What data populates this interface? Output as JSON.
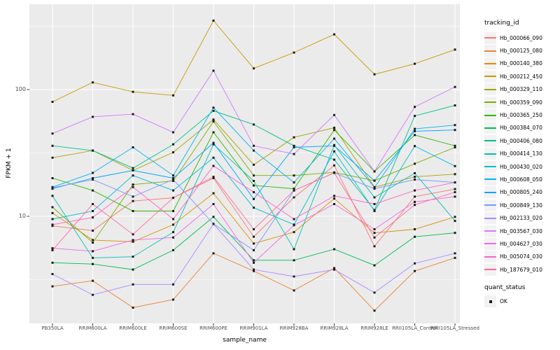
{
  "chart_data": {
    "type": "line",
    "title": "",
    "xlabel": "sample_name",
    "ylabel": "FPKM + 1",
    "y_scale": "log10",
    "ylim": [
      1.4,
      440
    ],
    "grid": "on",
    "legend_position": "right",
    "legend_title": "tracking_id",
    "quant_legend": {
      "title": "quant_status",
      "items": [
        {
          "label": "OK"
        }
      ]
    },
    "marker": {
      "shape": "square",
      "color": "#1a1a1a"
    },
    "panel_color": "#EBEBEB",
    "grid_color": "#FFFFFF",
    "y_ticks": {
      "labels": [
        "100",
        "10"
      ],
      "values": [
        100,
        10
      ],
      "minor_values": [
        316.23,
        31.623,
        3.1623
      ]
    },
    "categories": [
      "PB350LA",
      "RRIM600LA",
      "RRIM600LE",
      "RRIM600SE",
      "RRIM600PE",
      "RRIM901LA",
      "RRIM928BA",
      "RRIM928LA",
      "RRIM928LE",
      "RRII105LA_Control",
      "RRII105LA_Stressed"
    ],
    "series": [
      {
        "name": "Hb_000066_090",
        "color": "#F8766D",
        "values": [
          8.4,
          7.7,
          13.2,
          14,
          20,
          6.9,
          14.1,
          25.2,
          5.8,
          14.3,
          16.4
        ]
      },
      {
        "name": "Hb_000125_080",
        "color": "#EB8335",
        "values": [
          2.8,
          3.1,
          1.9,
          2.2,
          5.1,
          3.7,
          2.6,
          3.9,
          1.8,
          3.7,
          4.7
        ]
      },
      {
        "name": "Hb_000140_380",
        "color": "#DB8E00",
        "values": [
          10.6,
          6.5,
          6.3,
          8.6,
          15.2,
          6.1,
          7.5,
          13.8,
          7.4,
          7.9,
          9.9
        ]
      },
      {
        "name": "Hb_000212_450",
        "color": "#C49A00",
        "values": [
          80,
          114,
          96,
          90,
          350,
          147,
          196,
          273,
          132,
          160,
          207
        ]
      },
      {
        "name": "Hb_000329_110",
        "color": "#A6A400",
        "values": [
          29,
          33,
          23,
          32,
          58,
          25.5,
          42,
          50,
          17,
          20.5,
          21.5
        ]
      },
      {
        "name": "Hb_000359_090",
        "color": "#7CAE00",
        "values": [
          11.8,
          6.2,
          17.8,
          19,
          56,
          21,
          21,
          22.2,
          19.1,
          26,
          35
        ]
      },
      {
        "name": "Hb_000365_250",
        "color": "#30B700",
        "values": [
          20,
          16,
          11,
          11,
          46,
          17.5,
          16.5,
          48,
          22.6,
          43.8,
          36
        ]
      },
      {
        "name": "Hb_000384_070",
        "color": "#00BC51",
        "values": [
          4.3,
          4.2,
          3.8,
          5.4,
          9.9,
          4.5,
          4.5,
          5.5,
          4.1,
          6.9,
          7.4
        ]
      },
      {
        "name": "Hb_000406_080",
        "color": "#00C087",
        "values": [
          36,
          33,
          24,
          37,
          68,
          53,
          36,
          28,
          11.2,
          62,
          75
        ]
      },
      {
        "name": "Hb_000414_130",
        "color": "#00C0B2",
        "values": [
          14.5,
          4.7,
          4.8,
          7.5,
          37,
          19,
          5.5,
          36.5,
          14.1,
          21.9,
          9.2
        ]
      },
      {
        "name": "Hb_000430_020",
        "color": "#00BDD4",
        "values": [
          9.5,
          11,
          21,
          16,
          29,
          11.7,
          8.6,
          32.5,
          11,
          35.8,
          24.9
        ]
      },
      {
        "name": "Hb_000608_050",
        "color": "#00B4EF",
        "values": [
          17,
          22,
          35,
          21,
          72,
          33,
          18.5,
          41,
          16.9,
          49,
          52.5
        ]
      },
      {
        "name": "Hb_000805_240",
        "color": "#00A5FF",
        "values": [
          16.5,
          20,
          23,
          20,
          38,
          13.7,
          35,
          36,
          19.1,
          47,
          48
        ]
      },
      {
        "name": "Hb_000849_130",
        "color": "#7997FF",
        "values": [
          16.8,
          19.5,
          14.3,
          19.5,
          8.7,
          5.4,
          16,
          22,
          16.5,
          19.5,
          18.5
        ]
      },
      {
        "name": "Hb_002133_020",
        "color": "#AC88FF",
        "values": [
          3.5,
          2.4,
          2.9,
          2.9,
          8.7,
          3.8,
          3.35,
          3.8,
          2.5,
          4.25,
          5.1
        ]
      },
      {
        "name": "Hb_003567_030",
        "color": "#D277FF",
        "values": [
          45,
          61,
          64,
          46,
          141,
          36,
          31,
          63,
          22.6,
          73,
          105
        ]
      },
      {
        "name": "Hb_004627_030",
        "color": "#F066EA",
        "values": [
          5.6,
          5.3,
          6.5,
          6.8,
          12.5,
          4.3,
          8.5,
          12.5,
          7.9,
          13,
          14.3
        ]
      },
      {
        "name": "Hb_005074_030",
        "color": "#FF61C7",
        "values": [
          8.6,
          9.8,
          17,
          9.5,
          25,
          15.5,
          9.5,
          14.5,
          12.5,
          16,
          18.5
        ]
      },
      {
        "name": "Hb_187679_010",
        "color": "#FF689E",
        "values": [
          5.4,
          12.5,
          7.2,
          14,
          20.5,
          7.9,
          16,
          22,
          6.8,
          12.3,
          15.5
        ]
      }
    ]
  }
}
